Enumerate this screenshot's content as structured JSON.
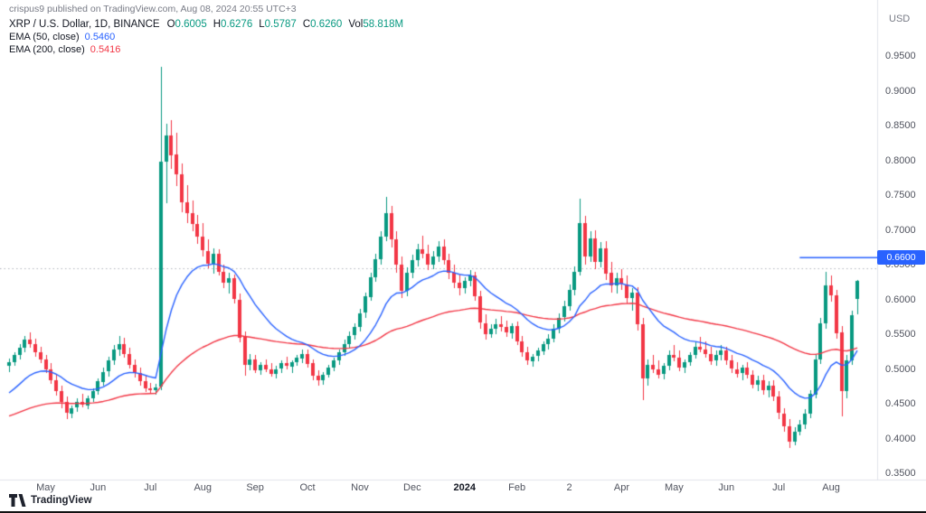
{
  "header": {
    "attribution": "crispus9 published on TradingView.com, Aug 08, 2024 20:55 UTC+3",
    "currency": "USD"
  },
  "legend": {
    "symbol": "XRP / U.S. Dollar, 1D, BINANCE",
    "ohlc": {
      "o_label": "O",
      "o_value": "0.6005",
      "h_label": "H",
      "h_value": "0.6276",
      "l_label": "L",
      "l_value": "0.5787",
      "c_label": "C",
      "c_value": "0.6260",
      "vol_label": "Vol",
      "vol_value": "58.818M"
    },
    "ema50": {
      "label": "EMA (50, close)",
      "value": "0.5460"
    },
    "ema200": {
      "label": "EMA (200, close)",
      "value": "0.5416"
    }
  },
  "footer": {
    "watermark": "TradingView"
  },
  "chart_data": {
    "type": "candlestick",
    "symbol": "XRP/USD",
    "interval": "1D",
    "exchange": "BINANCE",
    "last_ohlc": {
      "open": 0.6005,
      "high": 0.6276,
      "low": 0.5787,
      "close": 0.626,
      "volume": "58.818M"
    },
    "y_axis": {
      "ticks": [
        "0.9500",
        "0.9000",
        "0.8500",
        "0.8000",
        "0.7500",
        "0.7000",
        "0.6500",
        "0.6000",
        "0.5500",
        "0.5000",
        "0.4500",
        "0.4000",
        "0.3500"
      ],
      "ylim": [
        0.35,
        0.95
      ]
    },
    "x_axis": {
      "months": [
        {
          "label": "May",
          "candle": 7
        },
        {
          "label": "Jun",
          "candle": 17
        },
        {
          "label": "Jul",
          "candle": 27
        },
        {
          "label": "Aug",
          "candle": 37
        },
        {
          "label": "Sep",
          "candle": 47
        },
        {
          "label": "Oct",
          "candle": 57
        },
        {
          "label": "Nov",
          "candle": 67
        },
        {
          "label": "Dec",
          "candle": 77
        },
        {
          "label": "2024",
          "candle": 87,
          "bold": true
        },
        {
          "label": "Feb",
          "candle": 97
        },
        {
          "label": "2",
          "candle": 107
        },
        {
          "label": "Apr",
          "candle": 117
        },
        {
          "label": "May",
          "candle": 127
        },
        {
          "label": "Jun",
          "candle": 137
        },
        {
          "label": "Jul",
          "candle": 147
        },
        {
          "label": "Aug",
          "candle": 157
        }
      ]
    },
    "colors": {
      "up": "#089981",
      "down": "#f23645",
      "ema50": "#2962ff",
      "ema200": "#f23645",
      "dotted": "#b2b5be",
      "separator": "#e0e3eb"
    },
    "overlays": {
      "ema50": {
        "period": 50,
        "period_scaled": 17,
        "seed": 0.46,
        "last_value": 0.546
      },
      "ema200": {
        "period": 200,
        "period_scaled": 67,
        "seed": 0.43,
        "last_value": 0.5416
      }
    },
    "lines": {
      "dotted_reference": {
        "price": 0.645
      },
      "horizontal_ray": {
        "price": 0.66,
        "label": "0.6600",
        "start_candle": 151
      }
    },
    "candles": [
      [
        0.505,
        0.515,
        0.495,
        0.51
      ],
      [
        0.51,
        0.524,
        0.504,
        0.52
      ],
      [
        0.52,
        0.536,
        0.514,
        0.53
      ],
      [
        0.53,
        0.548,
        0.524,
        0.542
      ],
      [
        0.542,
        0.552,
        0.53,
        0.536
      ],
      [
        0.536,
        0.544,
        0.518,
        0.524
      ],
      [
        0.524,
        0.532,
        0.508,
        0.514
      ],
      [
        0.514,
        0.52,
        0.494,
        0.5
      ],
      [
        0.5,
        0.508,
        0.478,
        0.484
      ],
      [
        0.484,
        0.492,
        0.462,
        0.468
      ],
      [
        0.468,
        0.476,
        0.444,
        0.452
      ],
      [
        0.452,
        0.46,
        0.428,
        0.436
      ],
      [
        0.436,
        0.448,
        0.43,
        0.444
      ],
      [
        0.444,
        0.458,
        0.438,
        0.452
      ],
      [
        0.452,
        0.464,
        0.444,
        0.448
      ],
      [
        0.448,
        0.462,
        0.442,
        0.458
      ],
      [
        0.458,
        0.472,
        0.452,
        0.468
      ],
      [
        0.468,
        0.486,
        0.462,
        0.482
      ],
      [
        0.482,
        0.502,
        0.476,
        0.496
      ],
      [
        0.496,
        0.518,
        0.49,
        0.512
      ],
      [
        0.512,
        0.534,
        0.506,
        0.528
      ],
      [
        0.528,
        0.548,
        0.52,
        0.536
      ],
      [
        0.536,
        0.545,
        0.516,
        0.522
      ],
      [
        0.522,
        0.53,
        0.5,
        0.506
      ],
      [
        0.506,
        0.514,
        0.488,
        0.494
      ],
      [
        0.494,
        0.502,
        0.476,
        0.482
      ],
      [
        0.482,
        0.49,
        0.466,
        0.472
      ],
      [
        0.472,
        0.48,
        0.464,
        0.47
      ],
      [
        0.47,
        0.478,
        0.462,
        0.474
      ],
      [
        0.474,
        0.935,
        0.47,
        0.798
      ],
      [
        0.798,
        0.852,
        0.738,
        0.836
      ],
      [
        0.836,
        0.858,
        0.788,
        0.808
      ],
      [
        0.808,
        0.84,
        0.764,
        0.78
      ],
      [
        0.78,
        0.796,
        0.726,
        0.74
      ],
      [
        0.74,
        0.764,
        0.71,
        0.724
      ],
      [
        0.724,
        0.742,
        0.698,
        0.708
      ],
      [
        0.708,
        0.722,
        0.68,
        0.69
      ],
      [
        0.69,
        0.71,
        0.662,
        0.67
      ],
      [
        0.67,
        0.686,
        0.644,
        0.652
      ],
      [
        0.652,
        0.674,
        0.638,
        0.666
      ],
      [
        0.666,
        0.672,
        0.634,
        0.64
      ],
      [
        0.64,
        0.65,
        0.616,
        0.624
      ],
      [
        0.624,
        0.638,
        0.608,
        0.63
      ],
      [
        0.63,
        0.636,
        0.594,
        0.6
      ],
      [
        0.6,
        0.608,
        0.538,
        0.546
      ],
      [
        0.546,
        0.554,
        0.49,
        0.506
      ],
      [
        0.506,
        0.522,
        0.498,
        0.514
      ],
      [
        0.514,
        0.52,
        0.494,
        0.498
      ],
      [
        0.498,
        0.51,
        0.492,
        0.506
      ],
      [
        0.506,
        0.514,
        0.496,
        0.5
      ],
      [
        0.5,
        0.508,
        0.488,
        0.494
      ],
      [
        0.494,
        0.504,
        0.486,
        0.5
      ],
      [
        0.5,
        0.512,
        0.494,
        0.508
      ],
      [
        0.508,
        0.518,
        0.5,
        0.504
      ],
      [
        0.504,
        0.512,
        0.494,
        0.51
      ],
      [
        0.51,
        0.52,
        0.504,
        0.516
      ],
      [
        0.516,
        0.528,
        0.508,
        0.522
      ],
      [
        0.522,
        0.528,
        0.502,
        0.508
      ],
      [
        0.508,
        0.514,
        0.484,
        0.49
      ],
      [
        0.49,
        0.498,
        0.476,
        0.484
      ],
      [
        0.484,
        0.496,
        0.478,
        0.492
      ],
      [
        0.492,
        0.506,
        0.488,
        0.502
      ],
      [
        0.502,
        0.516,
        0.496,
        0.512
      ],
      [
        0.512,
        0.528,
        0.506,
        0.524
      ],
      [
        0.524,
        0.542,
        0.518,
        0.536
      ],
      [
        0.536,
        0.554,
        0.53,
        0.548
      ],
      [
        0.548,
        0.566,
        0.542,
        0.56
      ],
      [
        0.56,
        0.586,
        0.554,
        0.58
      ],
      [
        0.58,
        0.61,
        0.574,
        0.604
      ],
      [
        0.604,
        0.638,
        0.598,
        0.632
      ],
      [
        0.632,
        0.666,
        0.626,
        0.658
      ],
      [
        0.658,
        0.698,
        0.65,
        0.69
      ],
      [
        0.69,
        0.748,
        0.684,
        0.724
      ],
      [
        0.724,
        0.734,
        0.674,
        0.686
      ],
      [
        0.686,
        0.698,
        0.638,
        0.65
      ],
      [
        0.65,
        0.662,
        0.602,
        0.612
      ],
      [
        0.612,
        0.646,
        0.604,
        0.638
      ],
      [
        0.638,
        0.664,
        0.63,
        0.656
      ],
      [
        0.656,
        0.68,
        0.648,
        0.672
      ],
      [
        0.672,
        0.692,
        0.66,
        0.666
      ],
      [
        0.666,
        0.678,
        0.642,
        0.65
      ],
      [
        0.65,
        0.67,
        0.644,
        0.662
      ],
      [
        0.662,
        0.684,
        0.654,
        0.676
      ],
      [
        0.676,
        0.686,
        0.65,
        0.656
      ],
      [
        0.656,
        0.666,
        0.63,
        0.638
      ],
      [
        0.638,
        0.65,
        0.616,
        0.624
      ],
      [
        0.624,
        0.636,
        0.606,
        0.616
      ],
      [
        0.616,
        0.632,
        0.608,
        0.626
      ],
      [
        0.626,
        0.642,
        0.618,
        0.634
      ],
      [
        0.634,
        0.64,
        0.598,
        0.604
      ],
      [
        0.604,
        0.612,
        0.558,
        0.566
      ],
      [
        0.566,
        0.578,
        0.542,
        0.55
      ],
      [
        0.55,
        0.564,
        0.544,
        0.558
      ],
      [
        0.558,
        0.572,
        0.55,
        0.564
      ],
      [
        0.564,
        0.576,
        0.554,
        0.56
      ],
      [
        0.56,
        0.57,
        0.546,
        0.552
      ],
      [
        0.552,
        0.566,
        0.544,
        0.562
      ],
      [
        0.562,
        0.568,
        0.534,
        0.54
      ],
      [
        0.54,
        0.548,
        0.518,
        0.524
      ],
      [
        0.524,
        0.532,
        0.506,
        0.512
      ],
      [
        0.512,
        0.522,
        0.504,
        0.518
      ],
      [
        0.518,
        0.53,
        0.51,
        0.526
      ],
      [
        0.526,
        0.54,
        0.52,
        0.536
      ],
      [
        0.536,
        0.55,
        0.528,
        0.544
      ],
      [
        0.544,
        0.564,
        0.538,
        0.558
      ],
      [
        0.558,
        0.58,
        0.552,
        0.574
      ],
      [
        0.574,
        0.598,
        0.568,
        0.59
      ],
      [
        0.59,
        0.622,
        0.584,
        0.614
      ],
      [
        0.614,
        0.648,
        0.606,
        0.64
      ],
      [
        0.64,
        0.745,
        0.634,
        0.71
      ],
      [
        0.71,
        0.72,
        0.65,
        0.662
      ],
      [
        0.662,
        0.698,
        0.654,
        0.688
      ],
      [
        0.688,
        0.7,
        0.644,
        0.654
      ],
      [
        0.654,
        0.682,
        0.646,
        0.674
      ],
      [
        0.674,
        0.684,
        0.628,
        0.638
      ],
      [
        0.638,
        0.654,
        0.61,
        0.62
      ],
      [
        0.62,
        0.638,
        0.608,
        0.63
      ],
      [
        0.63,
        0.644,
        0.614,
        0.622
      ],
      [
        0.622,
        0.634,
        0.594,
        0.602
      ],
      [
        0.602,
        0.616,
        0.584,
        0.61
      ],
      [
        0.61,
        0.618,
        0.556,
        0.564
      ],
      [
        0.564,
        0.574,
        0.456,
        0.486
      ],
      [
        0.486,
        0.514,
        0.476,
        0.506
      ],
      [
        0.506,
        0.52,
        0.494,
        0.5
      ],
      [
        0.5,
        0.512,
        0.486,
        0.492
      ],
      [
        0.492,
        0.508,
        0.484,
        0.504
      ],
      [
        0.504,
        0.526,
        0.498,
        0.52
      ],
      [
        0.52,
        0.534,
        0.51,
        0.516
      ],
      [
        0.516,
        0.526,
        0.496,
        0.502
      ],
      [
        0.502,
        0.514,
        0.494,
        0.51
      ],
      [
        0.51,
        0.524,
        0.504,
        0.52
      ],
      [
        0.52,
        0.538,
        0.514,
        0.532
      ],
      [
        0.532,
        0.546,
        0.524,
        0.528
      ],
      [
        0.528,
        0.54,
        0.516,
        0.522
      ],
      [
        0.522,
        0.532,
        0.506,
        0.512
      ],
      [
        0.512,
        0.526,
        0.504,
        0.52
      ],
      [
        0.52,
        0.534,
        0.512,
        0.526
      ],
      [
        0.526,
        0.532,
        0.506,
        0.512
      ],
      [
        0.512,
        0.52,
        0.494,
        0.5
      ],
      [
        0.5,
        0.51,
        0.488,
        0.494
      ],
      [
        0.494,
        0.506,
        0.484,
        0.502
      ],
      [
        0.502,
        0.51,
        0.486,
        0.492
      ],
      [
        0.492,
        0.498,
        0.472,
        0.478
      ],
      [
        0.478,
        0.49,
        0.468,
        0.484
      ],
      [
        0.484,
        0.492,
        0.464,
        0.47
      ],
      [
        0.47,
        0.482,
        0.458,
        0.476
      ],
      [
        0.476,
        0.484,
        0.454,
        0.46
      ],
      [
        0.46,
        0.468,
        0.428,
        0.436
      ],
      [
        0.436,
        0.444,
        0.41,
        0.418
      ],
      [
        0.418,
        0.428,
        0.387,
        0.396
      ],
      [
        0.396,
        0.416,
        0.39,
        0.41
      ],
      [
        0.41,
        0.426,
        0.404,
        0.42
      ],
      [
        0.42,
        0.442,
        0.414,
        0.436
      ],
      [
        0.436,
        0.47,
        0.43,
        0.464
      ],
      [
        0.464,
        0.522,
        0.458,
        0.514
      ],
      [
        0.514,
        0.574,
        0.508,
        0.566
      ],
      [
        0.566,
        0.64,
        0.558,
        0.62
      ],
      [
        0.62,
        0.634,
        0.596,
        0.606
      ],
      [
        0.606,
        0.614,
        0.544,
        0.552
      ],
      [
        0.552,
        0.562,
        0.432,
        0.468
      ],
      [
        0.468,
        0.52,
        0.458,
        0.512
      ],
      [
        0.512,
        0.584,
        0.506,
        0.577
      ],
      [
        0.6005,
        0.6276,
        0.5787,
        0.626
      ]
    ]
  }
}
